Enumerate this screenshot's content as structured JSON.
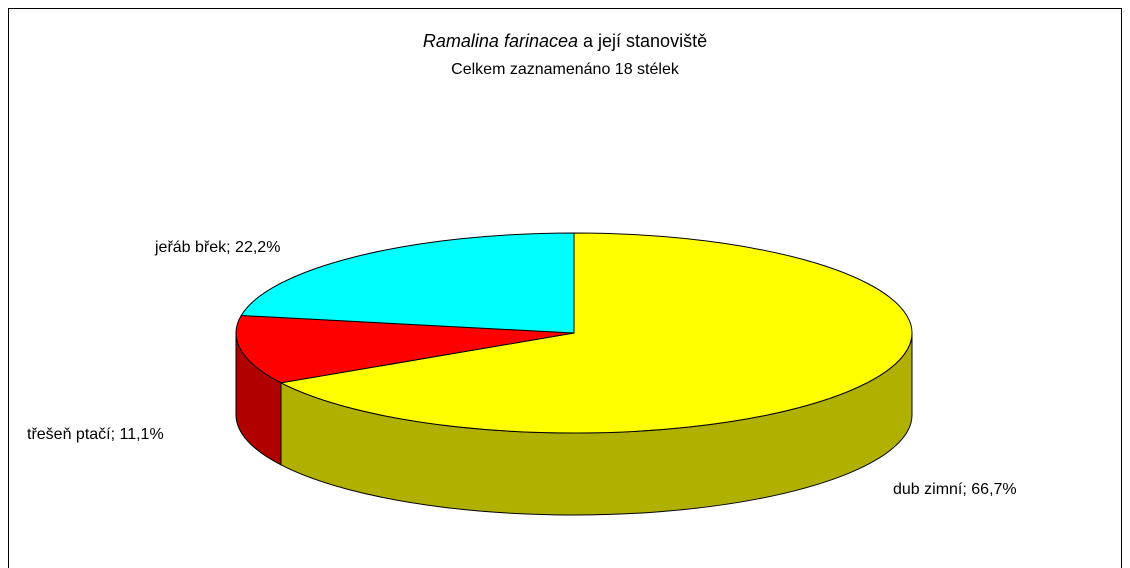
{
  "chart_data": {
    "type": "pie3d",
    "title": {
      "species": "Ramalina farinacea",
      "text": "a její stanoviště"
    },
    "subtitle": "Celkem zaznamenáno 18 stélek",
    "categories": [
      "dub zimní",
      "třešeň ptačí",
      "jeřáb břek"
    ],
    "values": [
      66.7,
      11.1,
      22.2
    ],
    "value_labels": [
      "66,7%",
      "11,1%",
      "22,2%"
    ],
    "label_separator": "; ",
    "colors": [
      "#ffff00",
      "#ff0000",
      "#00ffff"
    ]
  }
}
